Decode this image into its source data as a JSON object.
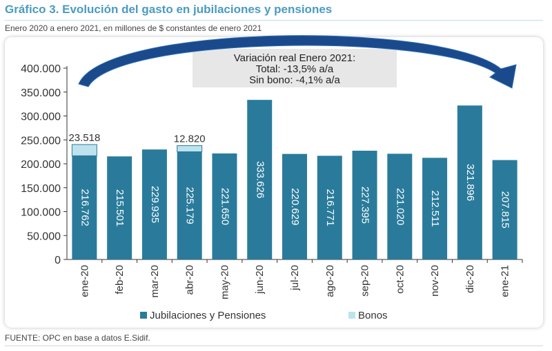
{
  "header": {
    "title": "Gráfico 3. Evolución del gasto en jubilaciones y pensiones",
    "subtitle": "Enero 2020 a enero 2021, en millones de $ constantes de enero 2021"
  },
  "footer": {
    "source": "FUENTE: OPC en base a datos E.Sidif."
  },
  "annotation": {
    "line1": "Variación real Enero 2021:",
    "line2": "Total: -13,5% a/a",
    "line3": "Sin bono: -4,1% a/a"
  },
  "colors": {
    "jubilaciones": "#2a7b9b",
    "bonos": "#bde3ef",
    "arrow": "#1a4a8c",
    "title": "#4a9bc0"
  },
  "chart_data": {
    "type": "bar",
    "stacked": true,
    "categories": [
      "ene-20",
      "feb-20",
      "mar-20",
      "abr-20",
      "may-20",
      "jun-20",
      "jul-20",
      "ago-20",
      "sep-20",
      "oct-20",
      "nov-20",
      "dic-20",
      "ene-21"
    ],
    "series": [
      {
        "name": "Jubilaciones y Pensiones",
        "values": [
          216762,
          215501,
          229935,
          225179,
          221650,
          333626,
          220629,
          216771,
          227395,
          221020,
          212511,
          321896,
          207815
        ],
        "labels": [
          "216.762",
          "215.501",
          "229.935",
          "225.179",
          "221.650",
          "333.626",
          "220.629",
          "216.771",
          "227.395",
          "221.020",
          "212.511",
          "321.896",
          "207.815"
        ]
      },
      {
        "name": "Bonos",
        "values": [
          23518,
          0,
          0,
          12820,
          0,
          0,
          0,
          0,
          0,
          0,
          0,
          0,
          0
        ],
        "labels": [
          "23.518",
          "",
          "",
          "12.820",
          "",
          "",
          "",
          "",
          "",
          "",
          "",
          "",
          ""
        ]
      }
    ],
    "ylim": [
      0,
      400000
    ],
    "yticks": [
      0,
      50000,
      100000,
      150000,
      200000,
      250000,
      300000,
      350000,
      400000
    ],
    "ytick_labels": [
      "0",
      "50.000",
      "100.000",
      "150.000",
      "200.000",
      "250.000",
      "300.000",
      "350.000",
      "400.000"
    ],
    "grid": false,
    "legend": "bottom"
  }
}
